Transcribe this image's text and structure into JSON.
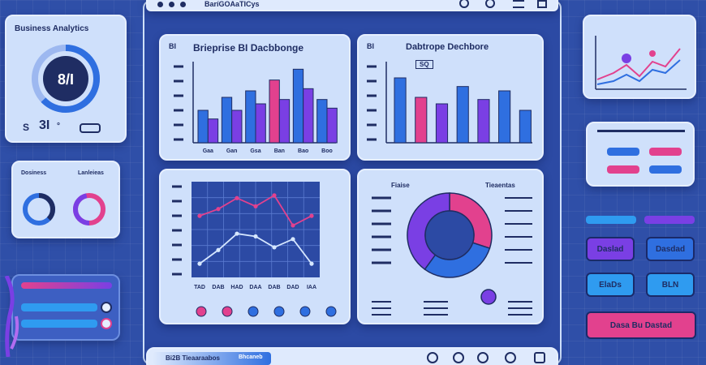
{
  "window": {
    "title": "BaríGOAaTICys"
  },
  "left_panel": {
    "title": "Business Analytics",
    "gauge_value": "8/Ι",
    "stat_value": "3I",
    "stat_prefix": "S",
    "stat_suffix": "°"
  },
  "mini_card": {
    "label_left": "Dosiness",
    "label_right": "Lanleieas"
  },
  "center": {
    "bar_panel_1": {
      "title": "Brieprise BI Dacbbonge",
      "tag": "BI",
      "categories": [
        "Gaa",
        "Gan",
        "Gsa",
        "Ban",
        "Bao",
        "Boo"
      ]
    },
    "bar_panel_2": {
      "title": "Dabtrope Dechbore",
      "tag": "BI",
      "subtag": "SQ"
    },
    "line_panel": {
      "axis_labels": [
        "TAD",
        "DAB",
        "HAD",
        "DAA",
        "DAB",
        "DAD",
        "IAA"
      ]
    },
    "donut_panel": {
      "label_left": "Fiaise",
      "label_right": "Tieaentas"
    }
  },
  "bottom_bar": {
    "label": "Bi2B Tieaaraabos",
    "label2": "Bhcaneb"
  },
  "right_panel": {
    "buttons": [
      "Daslad",
      "Dasdad",
      "ElaDs",
      "BLN"
    ],
    "cta": "Dasa Bu Dastad"
  },
  "colors": {
    "accent_blue": "#2f6fe0",
    "accent_purple": "#7a3fe4",
    "accent_pink": "#e2418e",
    "navy": "#1f2d63"
  },
  "chart_data": [
    {
      "type": "bar",
      "title": "Brieprise BI Dacbbonge",
      "categories": [
        "Gaa",
        "Gan",
        "Gsa",
        "Ban",
        "Bao",
        "Boo"
      ],
      "series": [
        {
          "values": [
            30,
            42,
            48,
            58,
            68,
            40
          ]
        },
        {
          "values": [
            22,
            30,
            36,
            40,
            50,
            32
          ]
        }
      ],
      "ylim": [
        0,
        75
      ]
    },
    {
      "type": "bar",
      "title": "Dabtrope Dechbore",
      "series": [
        {
          "values": [
            60,
            42,
            36,
            52,
            40,
            48,
            30
          ]
        }
      ],
      "ylim": [
        0,
        75
      ]
    },
    {
      "type": "line",
      "x": [
        "TAD",
        "DAB",
        "HAD",
        "DAA",
        "DAB",
        "DAD",
        "IAA"
      ],
      "series": [
        {
          "values": [
            45,
            50,
            58,
            52,
            60,
            38,
            45
          ]
        },
        {
          "values": [
            10,
            20,
            32,
            30,
            22,
            28,
            10
          ]
        }
      ],
      "ylim": [
        0,
        70
      ]
    },
    {
      "type": "pie",
      "series": [
        {
          "values": [
            30,
            30,
            40
          ]
        }
      ]
    }
  ]
}
